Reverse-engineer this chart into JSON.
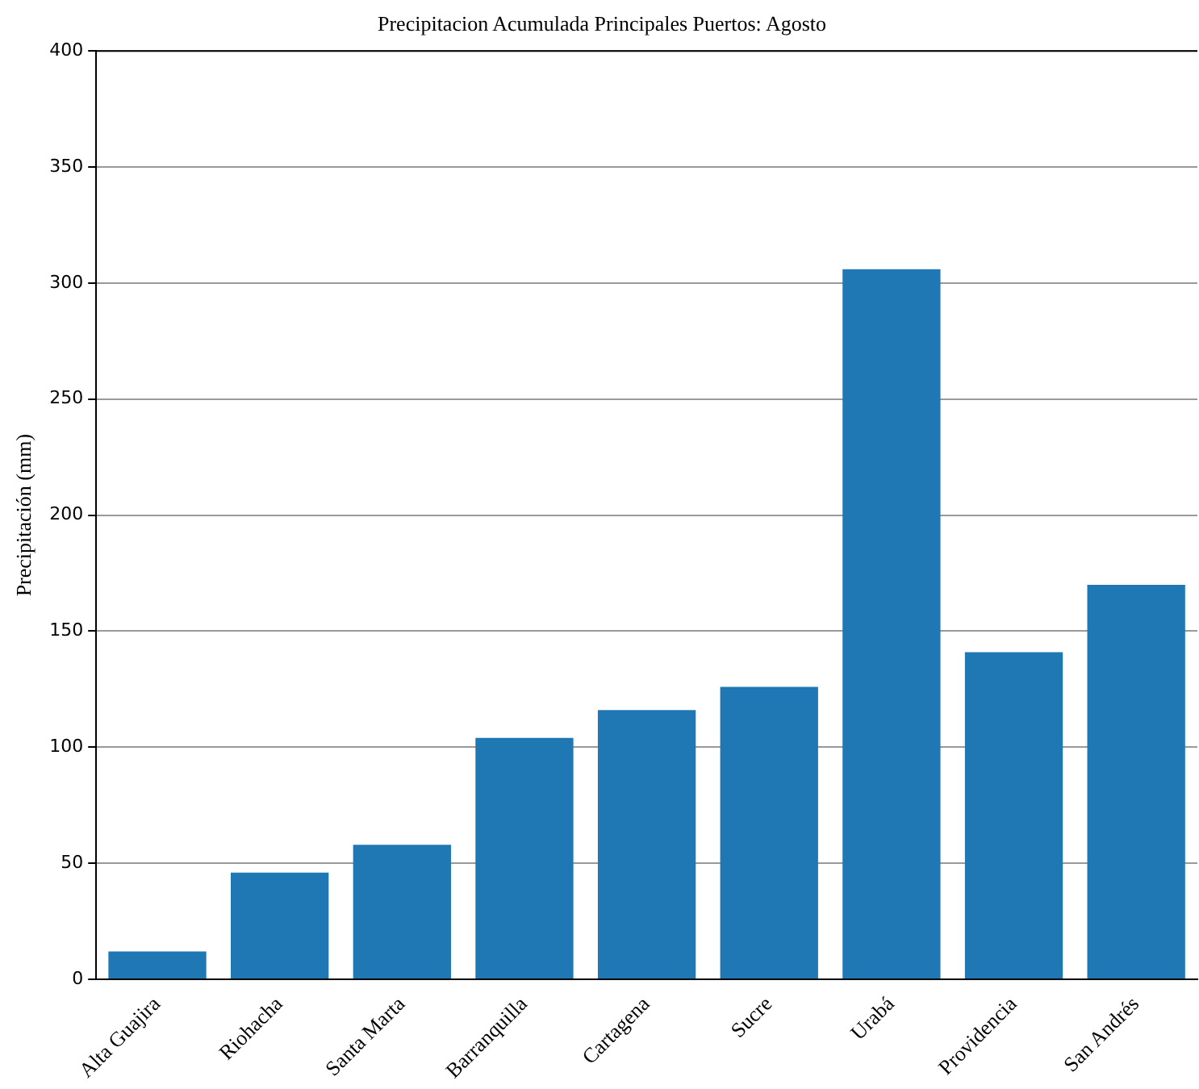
{
  "chart_data": {
    "type": "bar",
    "title": "Precipitacion Acumulada Principales Puertos: Agosto",
    "ylabel": "Precipitación (mm)",
    "categories": [
      "Alta Guajira",
      "Riohacha",
      "Santa Marta",
      "Barranquilla",
      "Cartagena",
      "Sucre",
      "Urabá",
      "Providencia",
      "San Andrés"
    ],
    "values": [
      12,
      46,
      58,
      104,
      116,
      126,
      306,
      141,
      170
    ],
    "color": "#1f77b4",
    "ylim": [
      0,
      400
    ],
    "yticks": [
      0,
      50,
      100,
      150,
      200,
      250,
      300,
      350,
      400
    ],
    "grid": "y"
  }
}
